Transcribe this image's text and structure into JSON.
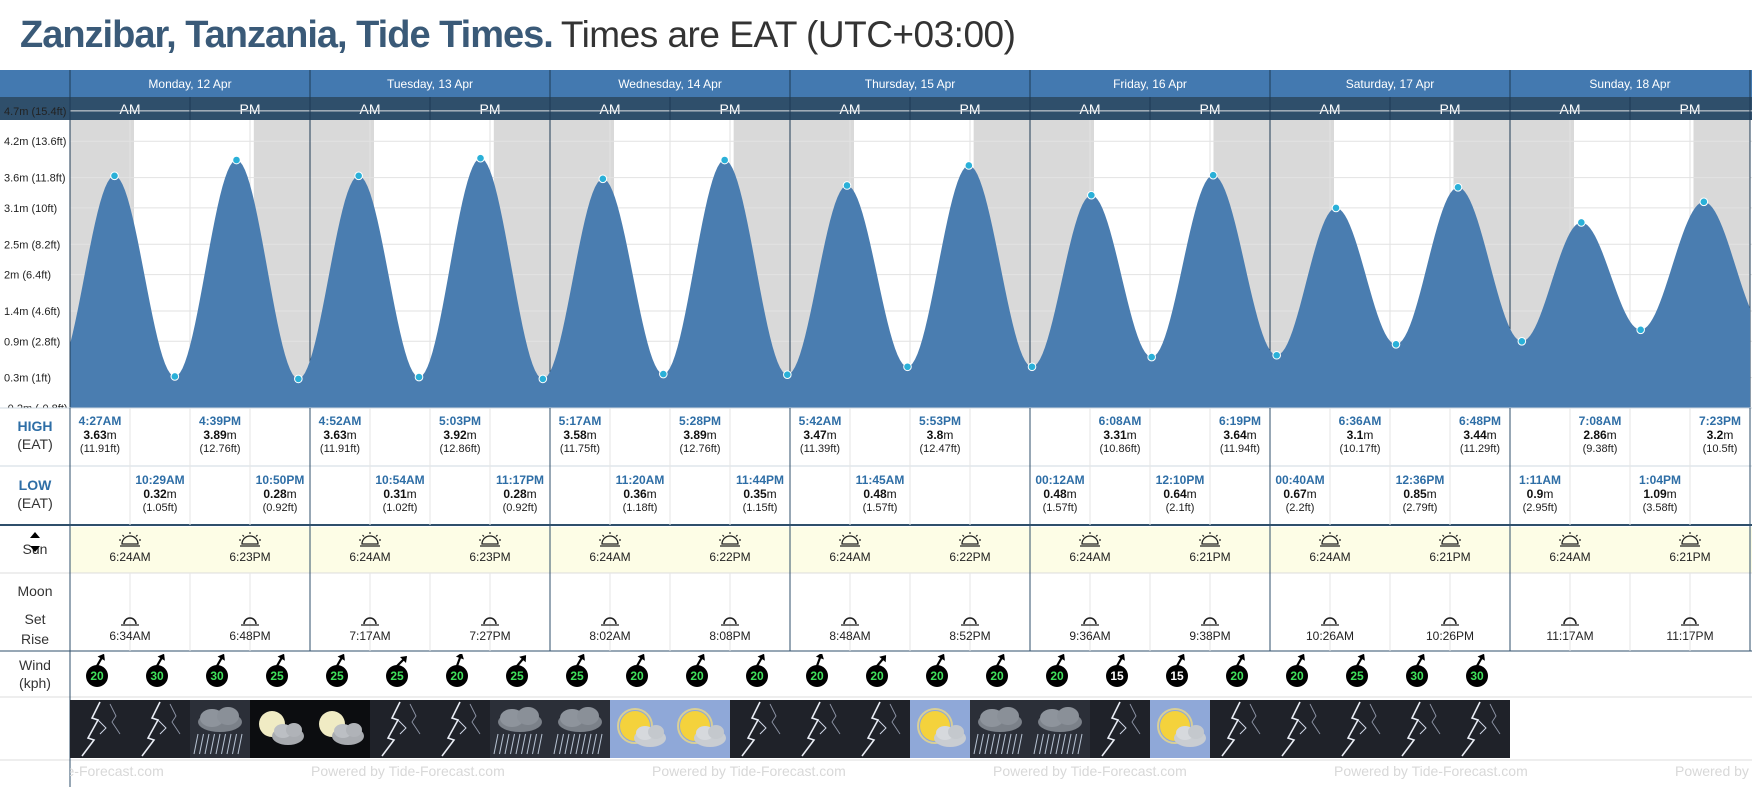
{
  "header": {
    "title": "Zanzibar, Tanzania, Tide Times.",
    "subtitle": "Times are EAT (UTC+03:00)"
  },
  "days": [
    "Monday, 12 Apr",
    "Tuesday, 13 Apr",
    "Wednesday, 14 Apr",
    "Thursday, 15 Apr",
    "Friday, 16 Apr",
    "Saturday, 17 Apr",
    "Sunday, 18 Apr"
  ],
  "ampm": [
    "AM",
    "PM"
  ],
  "row_labels": {
    "high": "HIGH",
    "high_tz": "(EAT)",
    "low": "LOW",
    "low_tz": "(EAT)",
    "sun": "Sun",
    "moon": "Moon",
    "set": "Set",
    "rise": "Rise",
    "wind": "Wind",
    "wind_unit": "(kph)"
  },
  "footer": {
    "text": "Powered by Tide-Forecast.com"
  },
  "colors": {
    "header_band": "#4379b0",
    "ampm_band": "#2f4f6b",
    "tide_fill": "#4a7db0",
    "night_shade": "#d9d9d9",
    "marker": "#2ab0d8",
    "label_blue": "#2e6ea6"
  },
  "chart_data": {
    "type": "area",
    "title": "",
    "y_axis_ticks": [
      "4.7m (15.4ft)",
      "4.2m (13.6ft)",
      "3.6m (11.8ft)",
      "3.1m (10ft)",
      "2.5m (8.2ft)",
      "2m (6.4ft)",
      "1.4m (4.6ft)",
      "0.9m (2.8ft)",
      "0.3m (1ft)",
      "-0.2m (-0.8ft)"
    ],
    "ylim": [
      -0.2,
      4.7
    ],
    "x_range": [
      "2021-04-12 00:00",
      "2021-04-19 00:00"
    ],
    "night_shading": true,
    "grid": true,
    "tides": [
      {
        "day": 0,
        "type": "high",
        "time": "4:27AM",
        "m": "3.63",
        "ft": "(11.91ft)",
        "t": "2021-04-12 04:27",
        "h": 3.63
      },
      {
        "day": 0,
        "type": "low",
        "time": "10:29AM",
        "m": "0.32",
        "ft": "(1.05ft)",
        "t": "2021-04-12 10:29",
        "h": 0.32
      },
      {
        "day": 0,
        "type": "high",
        "time": "4:39PM",
        "m": "3.89",
        "ft": "(12.76ft)",
        "t": "2021-04-12 16:39",
        "h": 3.89
      },
      {
        "day": 0,
        "type": "low",
        "time": "10:50PM",
        "m": "0.28",
        "ft": "(0.92ft)",
        "t": "2021-04-12 22:50",
        "h": 0.28
      },
      {
        "day": 1,
        "type": "high",
        "time": "4:52AM",
        "m": "3.63",
        "ft": "(11.91ft)",
        "t": "2021-04-13 04:52",
        "h": 3.63
      },
      {
        "day": 1,
        "type": "low",
        "time": "10:54AM",
        "m": "0.31",
        "ft": "(1.02ft)",
        "t": "2021-04-13 10:54",
        "h": 0.31
      },
      {
        "day": 1,
        "type": "high",
        "time": "5:03PM",
        "m": "3.92",
        "ft": "(12.86ft)",
        "t": "2021-04-13 17:03",
        "h": 3.92
      },
      {
        "day": 1,
        "type": "low",
        "time": "11:17PM",
        "m": "0.28",
        "ft": "(0.92ft)",
        "t": "2021-04-13 23:17",
        "h": 0.28
      },
      {
        "day": 2,
        "type": "high",
        "time": "5:17AM",
        "m": "3.58",
        "ft": "(11.75ft)",
        "t": "2021-04-14 05:17",
        "h": 3.58
      },
      {
        "day": 2,
        "type": "low",
        "time": "11:20AM",
        "m": "0.36",
        "ft": "(1.18ft)",
        "t": "2021-04-14 11:20",
        "h": 0.36
      },
      {
        "day": 2,
        "type": "high",
        "time": "5:28PM",
        "m": "3.89",
        "ft": "(12.76ft)",
        "t": "2021-04-14 17:28",
        "h": 3.89
      },
      {
        "day": 2,
        "type": "low",
        "time": "11:44PM",
        "m": "0.35",
        "ft": "(1.15ft)",
        "t": "2021-04-14 23:44",
        "h": 0.35
      },
      {
        "day": 3,
        "type": "high",
        "time": "5:42AM",
        "m": "3.47",
        "ft": "(11.39ft)",
        "t": "2021-04-15 05:42",
        "h": 3.47
      },
      {
        "day": 3,
        "type": "low",
        "time": "11:45AM",
        "m": "0.48",
        "ft": "(1.57ft)",
        "t": "2021-04-15 11:45",
        "h": 0.48
      },
      {
        "day": 3,
        "type": "high",
        "time": "5:53PM",
        "m": "3.8",
        "ft": "(12.47ft)",
        "t": "2021-04-15 17:53",
        "h": 3.8
      },
      {
        "day": 4,
        "type": "low",
        "time": "00:12AM",
        "m": "0.48",
        "ft": "(1.57ft)",
        "t": "2021-04-16 00:12",
        "h": 0.48
      },
      {
        "day": 4,
        "type": "high",
        "time": "6:08AM",
        "m": "3.31",
        "ft": "(10.86ft)",
        "t": "2021-04-16 06:08",
        "h": 3.31
      },
      {
        "day": 4,
        "type": "low",
        "time": "12:10PM",
        "m": "0.64",
        "ft": "(2.1ft)",
        "t": "2021-04-16 12:10",
        "h": 0.64
      },
      {
        "day": 4,
        "type": "high",
        "time": "6:19PM",
        "m": "3.64",
        "ft": "(11.94ft)",
        "t": "2021-04-16 18:19",
        "h": 3.64
      },
      {
        "day": 5,
        "type": "low",
        "time": "00:40AM",
        "m": "0.67",
        "ft": "(2.2ft)",
        "t": "2021-04-17 00:40",
        "h": 0.67
      },
      {
        "day": 5,
        "type": "high",
        "time": "6:36AM",
        "m": "3.1",
        "ft": "(10.17ft)",
        "t": "2021-04-17 06:36",
        "h": 3.1
      },
      {
        "day": 5,
        "type": "low",
        "time": "12:36PM",
        "m": "0.85",
        "ft": "(2.79ft)",
        "t": "2021-04-17 12:36",
        "h": 0.85
      },
      {
        "day": 5,
        "type": "high",
        "time": "6:48PM",
        "m": "3.44",
        "ft": "(11.29ft)",
        "t": "2021-04-17 18:48",
        "h": 3.44
      },
      {
        "day": 6,
        "type": "low",
        "time": "1:11AM",
        "m": "0.9",
        "ft": "(2.95ft)",
        "t": "2021-04-18 01:11",
        "h": 0.9
      },
      {
        "day": 6,
        "type": "high",
        "time": "7:08AM",
        "m": "2.86",
        "ft": "(9.38ft)",
        "t": "2021-04-18 07:08",
        "h": 2.86
      },
      {
        "day": 6,
        "type": "low",
        "time": "1:04PM",
        "m": "1.09",
        "ft": "(3.58ft)",
        "t": "2021-04-18 13:04",
        "h": 1.09
      },
      {
        "day": 6,
        "type": "high",
        "time": "7:23PM",
        "m": "3.2",
        "ft": "(10.5ft)",
        "t": "2021-04-18 19:23",
        "h": 3.2
      }
    ],
    "sun": [
      {
        "rise": "6:24AM",
        "set": "6:23PM"
      },
      {
        "rise": "6:24AM",
        "set": "6:23PM"
      },
      {
        "rise": "6:24AM",
        "set": "6:22PM"
      },
      {
        "rise": "6:24AM",
        "set": "6:22PM"
      },
      {
        "rise": "6:24AM",
        "set": "6:21PM"
      },
      {
        "rise": "6:24AM",
        "set": "6:21PM"
      },
      {
        "rise": "6:24AM",
        "set": "6:21PM"
      }
    ],
    "moon": [
      {
        "rise_am": "6:34AM",
        "rise_pm": "6:48PM"
      },
      {
        "rise_am": "7:17AM",
        "rise_pm": "7:27PM"
      },
      {
        "rise_am": "8:02AM",
        "rise_pm": "8:08PM"
      },
      {
        "rise_am": "8:48AM",
        "rise_pm": "8:52PM"
      },
      {
        "rise_am": "9:36AM",
        "rise_pm": "9:38PM"
      },
      {
        "rise_am": "10:26AM",
        "rise_pm": "10:26PM"
      },
      {
        "rise_am": "11:17AM",
        "rise_pm": "11:17PM"
      }
    ],
    "wind_kph": [
      20,
      30,
      30,
      25,
      25,
      25,
      20,
      25,
      25,
      20,
      20,
      20,
      20,
      20,
      20,
      20,
      20,
      15,
      15,
      20,
      20,
      25,
      30,
      30
    ],
    "wind_direction_deg": [
      30,
      30,
      30,
      30,
      30,
      45,
      20,
      40,
      30,
      30,
      30,
      30,
      20,
      40,
      30,
      30,
      30,
      30,
      30,
      30,
      30,
      30,
      30,
      30
    ],
    "weather": [
      "thunderstorm",
      "thunderstorm",
      "rain",
      "partly-cloudy-night",
      "partly-cloudy-night",
      "thunderstorm",
      "thunderstorm",
      "rain",
      "rain",
      "partly-cloudy",
      "partly-cloudy",
      "thunderstorm",
      "thunderstorm",
      "thunderstorm",
      "partly-cloudy",
      "rain",
      "rain",
      "thunderstorm",
      "partly-cloudy",
      "thunderstorm",
      "thunderstorm",
      "thunderstorm",
      "thunderstorm",
      "thunderstorm"
    ]
  }
}
